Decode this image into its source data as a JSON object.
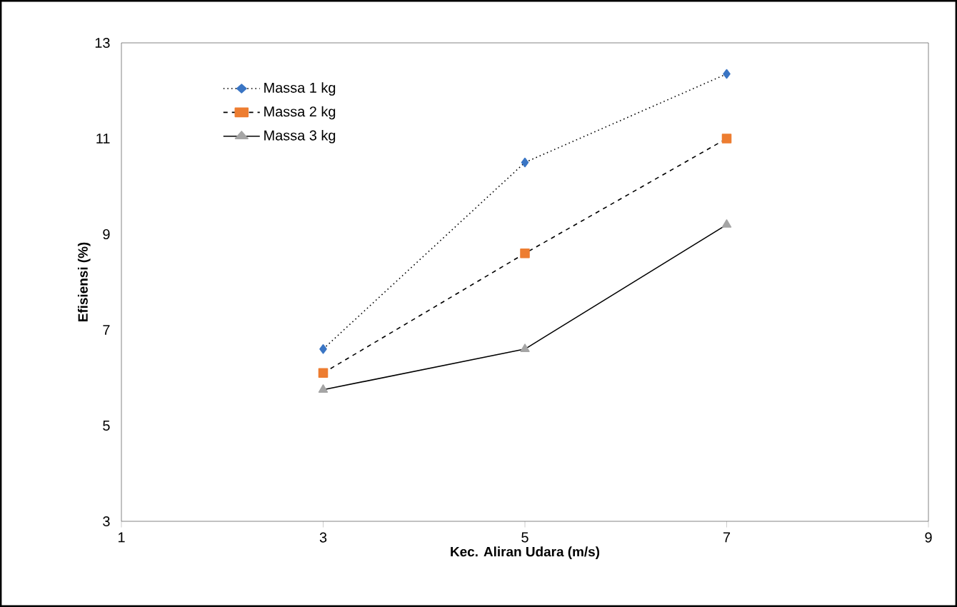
{
  "chart_data": {
    "type": "line",
    "xlabel": "Kec. Aliran Udara (m/s)",
    "ylabel": "Efisiensi (%)",
    "x": [
      3,
      5,
      7
    ],
    "series": [
      {
        "name": "Massa 1 kg",
        "color": "#3a75c4",
        "values": [
          6.6,
          10.5,
          12.35
        ],
        "marker": "diamond",
        "line_style": "dotted"
      },
      {
        "name": "Massa 2 kg",
        "color": "#ed7d31",
        "values": [
          6.1,
          8.6,
          11.0
        ],
        "marker": "square",
        "line_style": "dashed"
      },
      {
        "name": "Massa 3 kg",
        "color": "#a5a5a5",
        "values": [
          5.75,
          6.6,
          9.2
        ],
        "marker": "triangle",
        "line_style": "solid"
      }
    ],
    "xlim": [
      1,
      9
    ],
    "xticks": [
      1,
      3,
      5,
      7,
      9
    ],
    "ylim": [
      3,
      13
    ],
    "yticks": [
      3,
      5,
      7,
      9,
      11,
      13
    ],
    "grid": false,
    "legend": "top left"
  }
}
